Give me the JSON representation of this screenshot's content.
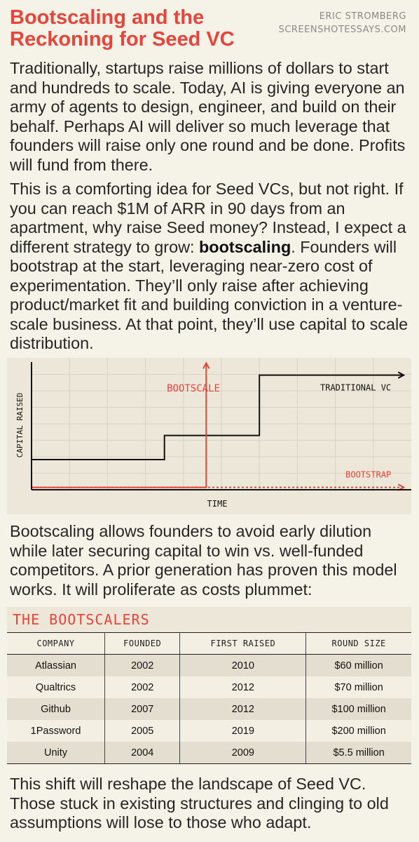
{
  "header": {
    "title": "Bootscaling and the Reckoning for Seed VC",
    "author": "ERIC STROMBERG",
    "site": "SCREENSHOTESSAYS.COM"
  },
  "paragraphs": {
    "p1": "Traditionally, startups raise millions of dollars to start and hundreds to scale. Today, AI is giving everyone an army of agents to design, engineer, and build on their behalf. Perhaps AI will deliver so much leverage that founders will raise only one round and be done. Profits will fund from there.",
    "p2_before": "This is a comforting idea for Seed VCs, but not right. If you can reach $1M of ARR in 90 days from an apartment, why raise Seed money? Instead, I expect a different strategy to grow: ",
    "p2_bold": "bootscaling",
    "p2_after": ". Founders will bootstrap at the start, leveraging near-zero cost of experimentation. They’ll only raise after achieving product/market fit and building conviction in a venture-scale business. At that point, they’ll use capital to scale distribution.",
    "p3": "Bootscaling allows founders to avoid early dilution while later securing capital to win vs. well-funded competitors. A prior generation has proven this model works. It will proliferate as costs plummet:",
    "p4": "This shift will reshape the landscape of Seed VC. Those stuck in existing structures and clinging to old assumptions will lose to those who adapt."
  },
  "chart_data": {
    "type": "line",
    "xlabel": "TIME",
    "ylabel": "CAPITAL RAISED",
    "grid": true,
    "x_range": [
      0,
      10
    ],
    "y_range": [
      0,
      10
    ],
    "annotations": [
      {
        "text": "BOOTSCALE",
        "x": 5,
        "y": 8.5
      }
    ],
    "series": [
      {
        "name": "TRADITIONAL VC",
        "style": "solid-step",
        "color": "#111111",
        "points": [
          [
            0,
            2.5
          ],
          [
            3.5,
            2.5
          ],
          [
            3.5,
            4.5
          ],
          [
            6,
            4.5
          ],
          [
            6,
            9.5
          ],
          [
            9.8,
            9.5
          ]
        ]
      },
      {
        "name": "BOOTSTRAP",
        "style": "dashed",
        "color": "#e8443a",
        "points": [
          [
            0,
            0.2
          ],
          [
            9.8,
            0.2
          ]
        ]
      },
      {
        "name": "",
        "style": "solid",
        "color": "#e8443a",
        "points": [
          [
            0,
            0.2
          ],
          [
            4.6,
            0.2
          ],
          [
            4.6,
            10.5
          ]
        ]
      }
    ]
  },
  "table": {
    "title": "THE BOOTSCALERS",
    "columns": [
      "COMPANY",
      "FOUNDED",
      "FIRST RAISED",
      "ROUND SIZE"
    ],
    "rows": [
      [
        "Atlassian",
        "2002",
        "2010",
        "$60 million"
      ],
      [
        "Qualtrics",
        "2002",
        "2012",
        "$70 million"
      ],
      [
        "Github",
        "2007",
        "2012",
        "$100 million"
      ],
      [
        "1Password",
        "2005",
        "2019",
        "$200 million"
      ],
      [
        "Unity",
        "2004",
        "2009",
        "$5.5 million"
      ]
    ]
  },
  "colors": {
    "accent": "#e8443a",
    "background": "#f5f2e8",
    "panel": "#ece7d8",
    "text": "#262626"
  }
}
